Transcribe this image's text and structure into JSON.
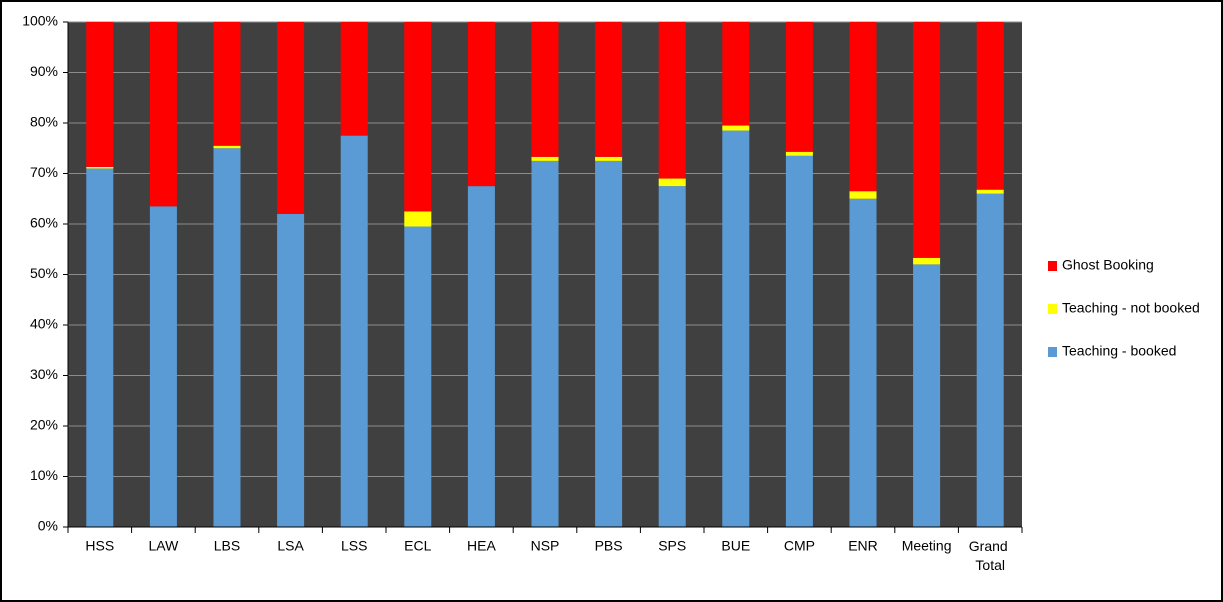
{
  "chart_data": {
    "type": "stacked-bar-100",
    "categories": [
      "HSS",
      "LAW",
      "LBS",
      "LSA",
      "LSS",
      "ECL",
      "HEA",
      "NSP",
      "PBS",
      "SPS",
      "BUE",
      "CMP",
      "ENR",
      "Meeting",
      "Grand Total"
    ],
    "series": [
      {
        "name": "Teaching - booked",
        "color": "#5b9bd5",
        "values": [
          71,
          63.5,
          75,
          62,
          77.5,
          59.5,
          67.5,
          72.5,
          72.5,
          67.5,
          78.5,
          73.5,
          65,
          52,
          66
        ]
      },
      {
        "name": "Teaching - not booked",
        "color": "#ffff00",
        "values": [
          0.3,
          0,
          0.5,
          0,
          0,
          3,
          0,
          0.8,
          0.8,
          1.5,
          1,
          0.8,
          1.5,
          1.3,
          0.8
        ]
      },
      {
        "name": "Ghost Booking",
        "color": "#ff0000",
        "values": [
          28.7,
          36.5,
          24.5,
          38,
          22.5,
          37.5,
          32.5,
          26.7,
          26.7,
          31,
          20.5,
          25.7,
          33.5,
          46.7,
          33.2
        ]
      }
    ],
    "ylim": [
      0,
      100
    ],
    "yticks": [
      {
        "value": 0,
        "label": "0%"
      },
      {
        "value": 10,
        "label": "10%"
      },
      {
        "value": 20,
        "label": "20%"
      },
      {
        "value": 30,
        "label": "30%"
      },
      {
        "value": 40,
        "label": "40%"
      },
      {
        "value": 50,
        "label": "50%"
      },
      {
        "value": 60,
        "label": "60%"
      },
      {
        "value": 70,
        "label": "70%"
      },
      {
        "value": 80,
        "label": "80%"
      },
      {
        "value": 90,
        "label": "90%"
      },
      {
        "value": 100,
        "label": "100%"
      }
    ],
    "grid": true,
    "legend": "right",
    "plot_background": "#404040"
  }
}
